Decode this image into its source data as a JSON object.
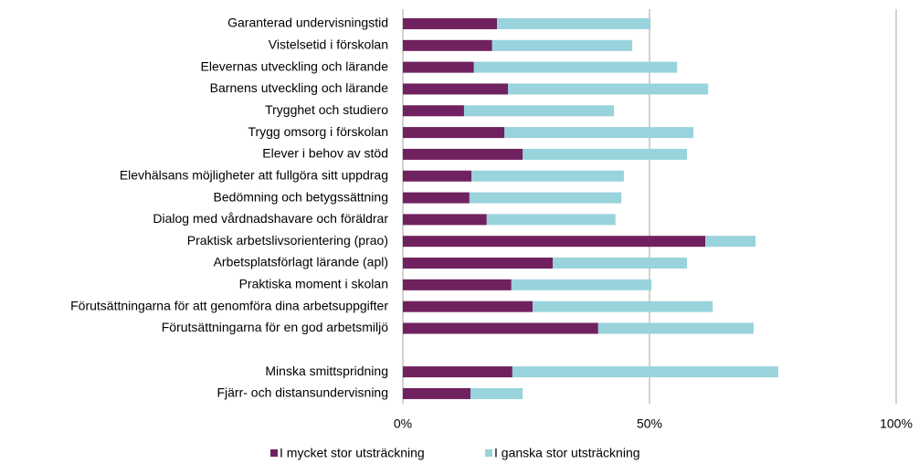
{
  "chart_data": {
    "type": "stacked-barh",
    "categories": [
      "Garanterad undervisningstid",
      "Vistelsetid i förskolan",
      "Elevernas utveckling och lärande",
      "Barnens utveckling och lärande",
      "Trygghet och studiero",
      "Trygg omsorg i förskolan",
      "Elever i behov av stöd",
      "Elevhälsans möjligheter att fullgöra sitt uppdrag",
      "Bedömning och betygssättning",
      "Dialog med vårdnadshavare och föräldrar",
      "Praktisk arbetslivsorientering (prao)",
      "Arbetsplatsförlagt lärande (apl)",
      "Praktiska moment i skolan",
      "Förutsättningarna för att genomföra dina arbetsuppgifter",
      "Förutsättningarna för en god arbetsmiljö",
      null,
      "Minska smittspridning",
      "Fjärr- och distansundervisning"
    ],
    "series": [
      {
        "name": "I mycket stor utsträckning",
        "color": "#70215f",
        "values": [
          19.1,
          18.1,
          14.4,
          21.3,
          12.4,
          20.6,
          24.3,
          13.9,
          13.5,
          17.0,
          61.3,
          30.4,
          22.0,
          26.3,
          39.6,
          null,
          22.2,
          13.7
        ]
      },
      {
        "name": "I ganska stor utsträckning",
        "color": "#99d3dc",
        "values": [
          31.1,
          28.4,
          41.2,
          40.6,
          30.4,
          38.3,
          33.3,
          30.9,
          30.8,
          26.1,
          10.2,
          27.2,
          28.4,
          36.5,
          31.5,
          null,
          53.9,
          10.6
        ]
      }
    ],
    "xlim": [
      0,
      100
    ],
    "xticks": [
      {
        "value": 0,
        "label": "0%"
      },
      {
        "value": 50,
        "label": "50%"
      },
      {
        "value": 100,
        "label": "100%"
      }
    ],
    "grid": true,
    "legend": "bottom"
  }
}
